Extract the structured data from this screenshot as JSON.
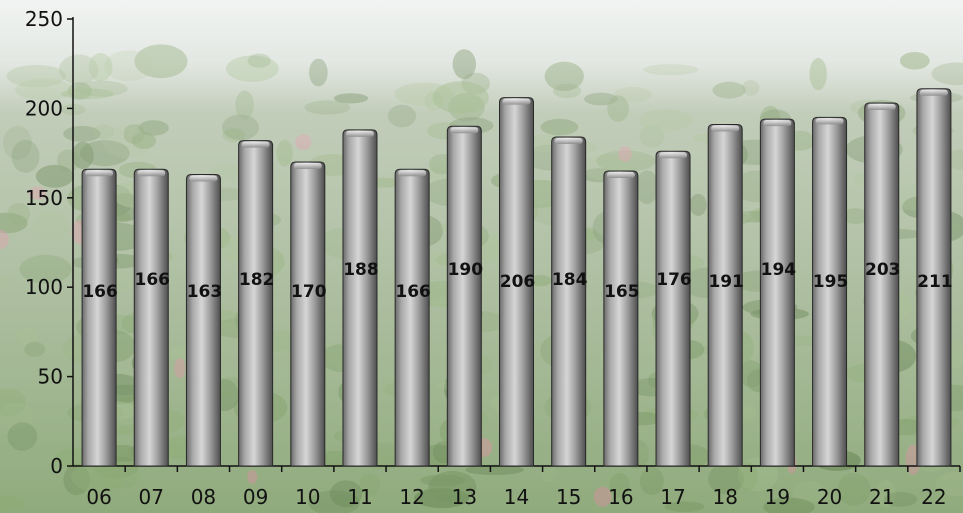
{
  "chart_data": {
    "type": "bar",
    "title": "",
    "xlabel": "",
    "ylabel": "",
    "ylim": [
      0,
      250
    ],
    "yticks": [
      0,
      50,
      100,
      150,
      200,
      250
    ],
    "grid": false,
    "legend": "none",
    "categories": [
      "06",
      "07",
      "08",
      "09",
      "10",
      "11",
      "12",
      "13",
      "14",
      "15",
      "16",
      "17",
      "18",
      "19",
      "20",
      "21",
      "22"
    ],
    "values": [
      166,
      166,
      163,
      182,
      170,
      188,
      166,
      190,
      206,
      184,
      165,
      176,
      191,
      194,
      195,
      203,
      211
    ],
    "data_labels": [
      "166",
      "166",
      "163",
      "182",
      "170",
      "188",
      "166",
      "190",
      "206",
      "184",
      "165",
      "176",
      "191",
      "194",
      "195",
      "203",
      "211"
    ],
    "colors": {
      "bar": "#9a9a9a",
      "bar_edge": "#2a2a2a",
      "background_sky": "#c9d3cc",
      "background_field": "#7f9a6a",
      "axis": "#111111"
    }
  }
}
